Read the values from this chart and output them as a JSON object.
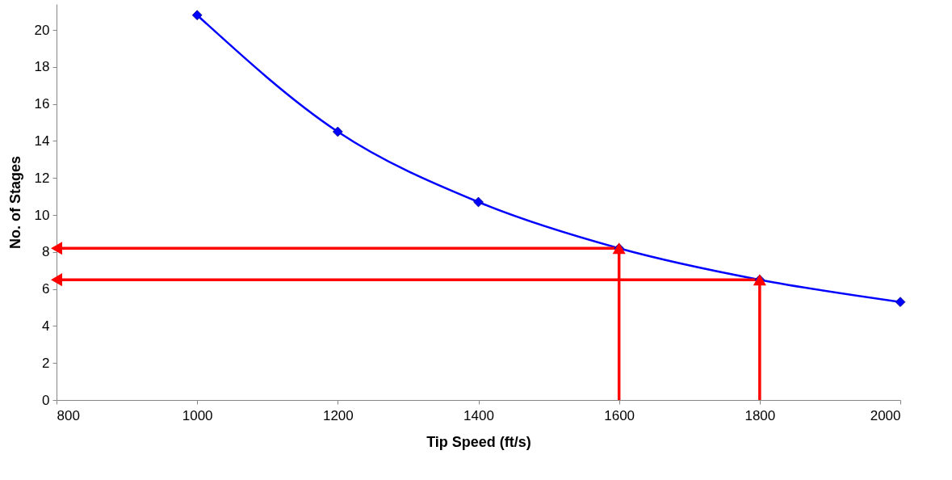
{
  "chart_data": {
    "type": "line",
    "xlabel": "Tip Speed (ft/s)",
    "ylabel": "No. of Stages",
    "x": [
      1000,
      1200,
      1400,
      1600,
      1800,
      2000
    ],
    "series": [
      {
        "color": "#0000ff",
        "values": [
          20.8,
          14.5,
          10.7,
          8.2,
          6.5,
          5.3
        ]
      },
      {
        "color": "#ff0000",
        "x": [
          1600,
          1600
        ],
        "values": [
          0,
          8.2
        ],
        "marker": "triangle"
      },
      {
        "color": "#ff0000",
        "x": [
          1600,
          800
        ],
        "values": [
          8.2,
          8.2
        ],
        "marker": "triangle"
      },
      {
        "color": "#ff0000",
        "x": [
          1800,
          1800
        ],
        "values": [
          0,
          6.5
        ],
        "marker": "triangle"
      },
      {
        "color": "#ff0000",
        "x": [
          1800,
          800
        ],
        "values": [
          6.5,
          6.5
        ],
        "marker": "triangle"
      }
    ],
    "xlim": [
      800,
      2000
    ],
    "ylim": [
      0,
      21.4
    ],
    "xticks": [
      800,
      1000,
      1200,
      1400,
      1600,
      1800,
      2000
    ],
    "yticks": [
      0,
      2,
      4,
      6,
      8,
      10,
      12,
      14,
      16,
      18,
      20
    ],
    "grid": false,
    "legend": false,
    "marker": "diamond",
    "line_style": "solid"
  }
}
